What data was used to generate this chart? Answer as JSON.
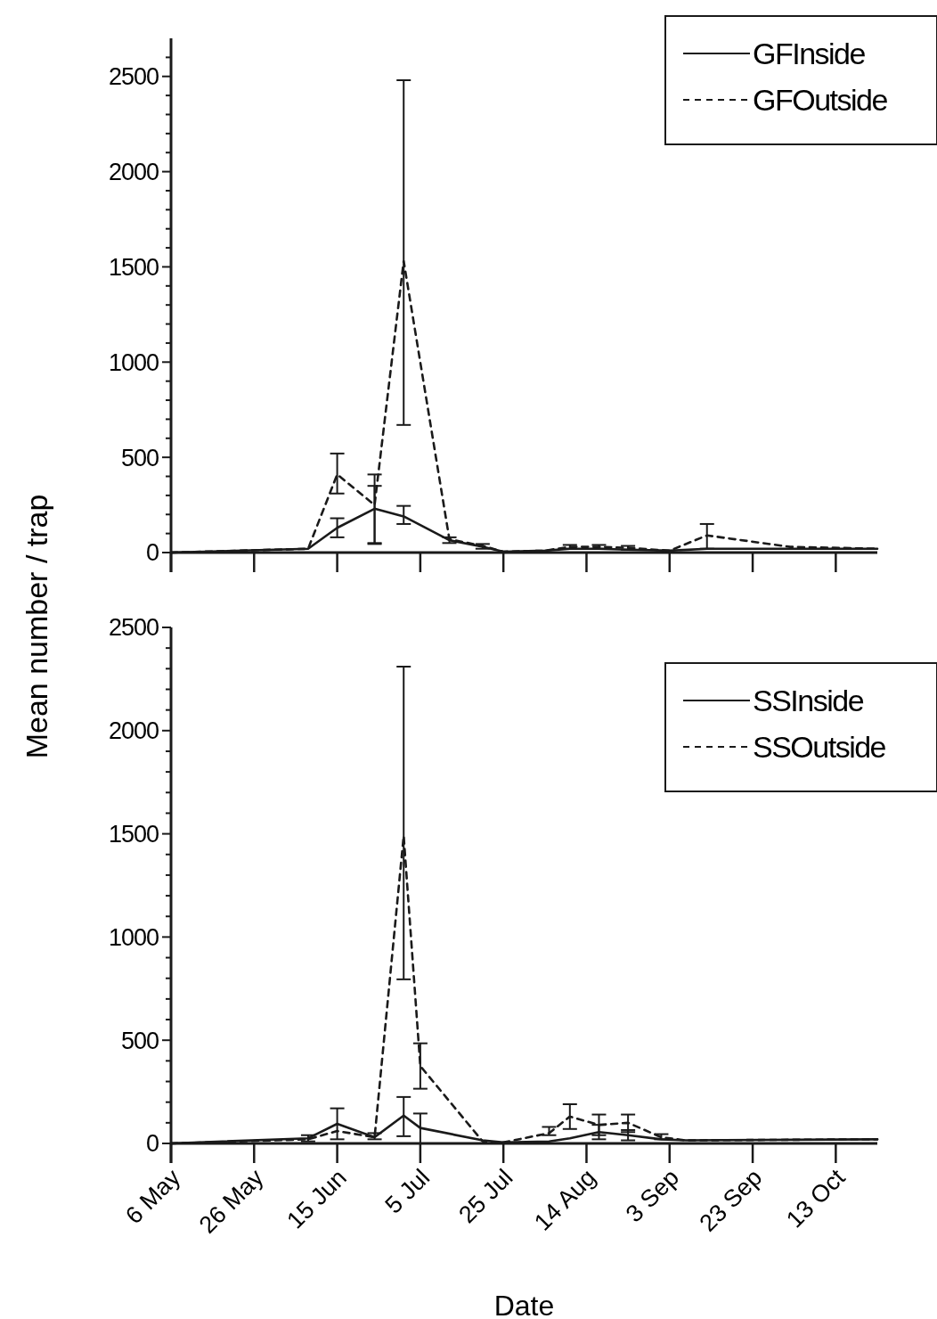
{
  "chart_data": [
    {
      "type": "line",
      "ylabel": "Mean number / trap",
      "xlim": [
        "--05-06",
        "--10-23"
      ],
      "xticks": [
        {
          "value": "--05-06",
          "label": null
        },
        {
          "value": "--05-26",
          "label": null
        },
        {
          "value": "--06-15",
          "label": null
        },
        {
          "value": "--07-05",
          "label": null
        },
        {
          "value": "--07-25",
          "label": null
        },
        {
          "value": "--08-14",
          "label": null
        },
        {
          "value": "--09-03",
          "label": null
        },
        {
          "value": "--09-23",
          "label": null
        },
        {
          "value": "--10-13",
          "label": null
        }
      ],
      "ylim": [
        0,
        2700
      ],
      "yticks": [
        0,
        {
          "value": 100,
          "label": null
        },
        {
          "value": 200,
          "label": null
        },
        {
          "value": 300,
          "label": null
        },
        {
          "value": 400,
          "label": null
        },
        500,
        {
          "value": 600,
          "label": null
        },
        {
          "value": 700,
          "label": null
        },
        {
          "value": 800,
          "label": null
        },
        {
          "value": 900,
          "label": null
        },
        1000,
        {
          "value": 1100,
          "label": null
        },
        {
          "value": 1200,
          "label": null
        },
        {
          "value": 1300,
          "label": null
        },
        {
          "value": 1400,
          "label": null
        },
        1500,
        {
          "value": 1600,
          "label": null
        },
        {
          "value": 1700,
          "label": null
        },
        {
          "value": 1800,
          "label": null
        },
        {
          "value": 1900,
          "label": null
        },
        2000,
        {
          "value": 2100,
          "label": null
        },
        {
          "value": 2200,
          "label": null
        },
        {
          "value": 2300,
          "label": null
        },
        {
          "value": 2400,
          "label": null
        },
        2500,
        {
          "value": 2600,
          "label": null
        }
      ],
      "tick_labels": "y",
      "legend": "top right",
      "marker": "none",
      "series": [
        {
          "name": "GFInside",
          "color": "#1a1a1a",
          "line_style": "solid",
          "x": [
            "--05-06",
            "--06-08",
            "--06-15",
            "--06-24",
            "--07-01",
            "--07-12",
            "--07-20",
            "--07-25",
            "--08-04",
            "--08-10",
            "--08-17",
            "--08-24",
            "--09-03",
            "--09-12",
            "--10-02",
            "--10-23"
          ],
          "values": [
            0,
            20,
            130,
            230,
            190,
            65,
            30,
            5,
            10,
            20,
            20,
            15,
            10,
            20,
            20,
            20
          ],
          "errors": [
            null,
            null,
            [
              80,
              180
            ],
            [
              50,
              410
            ],
            [
              150,
              245
            ],
            [
              50,
              80
            ],
            null,
            null,
            null,
            null,
            null,
            null,
            null,
            null,
            null,
            null
          ]
        },
        {
          "name": "GFOutside",
          "color": "#1a1a1a",
          "line_style": "dashed",
          "x": [
            "--05-06",
            "--06-08",
            "--06-15",
            "--06-24",
            "--07-01",
            "--07-12",
            "--07-20",
            "--07-25",
            "--08-04",
            "--08-10",
            "--08-17",
            "--08-24",
            "--09-03",
            "--09-12",
            "--10-02",
            "--10-23"
          ],
          "values": [
            0,
            20,
            410,
            250,
            1530,
            70,
            35,
            5,
            10,
            30,
            30,
            25,
            10,
            90,
            30,
            20
          ],
          "errors": [
            null,
            null,
            [
              310,
              520
            ],
            [
              45,
              350
            ],
            [
              670,
              2480
            ],
            null,
            [
              20,
              45
            ],
            null,
            null,
            [
              20,
              40
            ],
            [
              20,
              40
            ],
            [
              15,
              35
            ],
            null,
            [
              20,
              150
            ],
            null,
            null
          ]
        }
      ]
    },
    {
      "type": "line",
      "xlabel": "Date",
      "xlim": [
        "--05-06",
        "--10-23"
      ],
      "xticks": [
        {
          "value": "--05-06",
          "label": "6 May"
        },
        {
          "value": "--05-26",
          "label": "26 May"
        },
        {
          "value": "--06-15",
          "label": "15 Jun"
        },
        {
          "value": "--07-05",
          "label": "5 Jul"
        },
        {
          "value": "--07-25",
          "label": "25 Jul"
        },
        {
          "value": "--08-14",
          "label": "14 Aug"
        },
        {
          "value": "--09-03",
          "label": "3 Sep"
        },
        {
          "value": "--09-23",
          "label": "23 Sep"
        },
        {
          "value": "--10-13",
          "label": "13 Oct"
        }
      ],
      "ylim": [
        0,
        2500
      ],
      "yticks": [
        0,
        {
          "value": 100,
          "label": null
        },
        {
          "value": 200,
          "label": null
        },
        {
          "value": 300,
          "label": null
        },
        {
          "value": 400,
          "label": null
        },
        500,
        {
          "value": 600,
          "label": null
        },
        {
          "value": 700,
          "label": null
        },
        {
          "value": 800,
          "label": null
        },
        {
          "value": 900,
          "label": null
        },
        1000,
        {
          "value": 1100,
          "label": null
        },
        {
          "value": 1200,
          "label": null
        },
        {
          "value": 1300,
          "label": null
        },
        {
          "value": 1400,
          "label": null
        },
        1500,
        {
          "value": 1600,
          "label": null
        },
        {
          "value": 1700,
          "label": null
        },
        {
          "value": 1800,
          "label": null
        },
        {
          "value": 1900,
          "label": null
        },
        2000,
        {
          "value": 2100,
          "label": null
        },
        {
          "value": 2200,
          "label": null
        },
        {
          "value": 2300,
          "label": null
        },
        {
          "value": 2400,
          "label": null
        },
        2500
      ],
      "legend": "top right",
      "marker": "none",
      "series": [
        {
          "name": "SSInside",
          "color": "#1a1a1a",
          "line_style": "solid",
          "x": [
            "--05-06",
            "--06-08",
            "--06-15",
            "--06-24",
            "--07-01",
            "--07-05",
            "--07-20",
            "--07-25",
            "--08-05",
            "--08-10",
            "--08-17",
            "--08-24",
            "--09-01",
            "--09-07",
            "--10-23"
          ],
          "values": [
            0,
            25,
            95,
            30,
            135,
            75,
            15,
            5,
            10,
            25,
            55,
            40,
            20,
            15,
            20
          ],
          "errors": [
            null,
            null,
            [
              20,
              170
            ],
            [
              20,
              50
            ],
            [
              35,
              225
            ],
            [
              0,
              145
            ],
            null,
            null,
            null,
            null,
            [
              20,
              90
            ],
            [
              15,
              65
            ],
            null,
            null,
            null
          ]
        },
        {
          "name": "SSOutside",
          "color": "#1a1a1a",
          "line_style": "dashed",
          "x": [
            "--05-06",
            "--06-08",
            "--06-15",
            "--06-24",
            "--07-01",
            "--07-05",
            "--07-20",
            "--07-25",
            "--08-05",
            "--08-10",
            "--08-17",
            "--08-24",
            "--09-01",
            "--09-07",
            "--10-23"
          ],
          "values": [
            0,
            20,
            60,
            30,
            1490,
            375,
            10,
            5,
            50,
            130,
            90,
            100,
            30,
            15,
            20
          ],
          "errors": [
            null,
            [
              10,
              40
            ],
            null,
            null,
            [
              795,
              2310
            ],
            [
              265,
              485
            ],
            null,
            null,
            [
              40,
              80
            ],
            [
              70,
              190
            ],
            [
              40,
              140
            ],
            [
              55,
              140
            ],
            [
              20,
              45
            ],
            null,
            null
          ]
        }
      ]
    }
  ]
}
